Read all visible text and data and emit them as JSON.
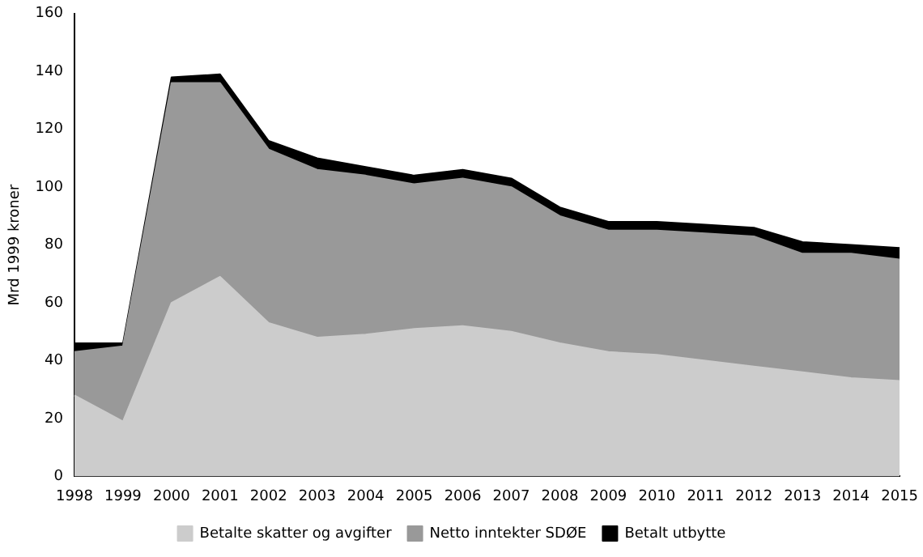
{
  "chart_data": {
    "type": "area",
    "stacked": true,
    "ylabel": "Mrd 1999 kroner",
    "categories": [
      "1998",
      "1999",
      "2000",
      "2001",
      "2002",
      "2003",
      "2004",
      "2005",
      "2006",
      "2007",
      "2008",
      "2009",
      "2010",
      "2011",
      "2012",
      "2013",
      "2014",
      "2015"
    ],
    "series": [
      {
        "name": "Betalte skatter og avgifter",
        "color": "#cccccc",
        "values": [
          28,
          19,
          60,
          69,
          53,
          48,
          49,
          51,
          52,
          50,
          46,
          43,
          42,
          40,
          38,
          36,
          34,
          33
        ]
      },
      {
        "name": "Netto inntekter SDØE",
        "color": "#999999",
        "values": [
          15,
          26,
          76,
          67,
          60,
          58,
          55,
          50,
          51,
          50,
          44,
          42,
          43,
          44,
          45,
          41,
          43,
          42
        ]
      },
      {
        "name": "Betalt utbytte",
        "color": "#000000",
        "values": [
          3,
          1,
          2,
          3,
          3,
          4,
          3,
          3,
          3,
          3,
          3,
          3,
          3,
          3,
          3,
          4,
          3,
          4
        ]
      }
    ],
    "ylim": [
      0,
      160
    ],
    "yticks": [
      0,
      20,
      40,
      60,
      80,
      100,
      120,
      140,
      160
    ],
    "grid": false,
    "legend": "bottom",
    "marker": "none"
  }
}
